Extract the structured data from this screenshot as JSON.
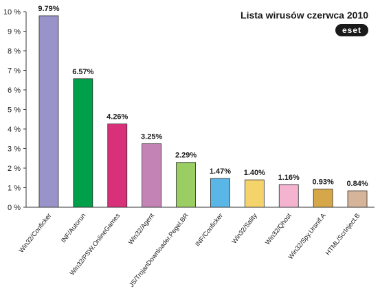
{
  "chart_data": {
    "type": "bar",
    "title": "Lista wirusów czerwca 2010",
    "logo": "eset",
    "categories": [
      "Win32/Conficker",
      "INF/Autorun",
      "Win32/PSW.OnlineGames",
      "Win32/Agent",
      "JS/TrojanDownloader.Pegel.BR",
      "INF/Conficker",
      "Win32/Sality",
      "Win32/Qhost",
      "Win32/Spy.Ursnif.A",
      "HTML/ScrInject.B"
    ],
    "values": [
      9.79,
      6.57,
      4.26,
      3.25,
      2.29,
      1.47,
      1.4,
      1.16,
      0.93,
      0.84
    ],
    "value_labels": [
      "9.79%",
      "6.57%",
      "4.26%",
      "3.25%",
      "2.29%",
      "1.47%",
      "1.40%",
      "1.16%",
      "0.93%",
      "0.84%"
    ],
    "colors": [
      "#9a93c9",
      "#00a04b",
      "#d9307a",
      "#c384b5",
      "#9acd62",
      "#5bb6e8",
      "#f5d36b",
      "#f4b4d0",
      "#d6a748",
      "#d5b49a"
    ],
    "ylim": [
      0,
      10
    ],
    "yticks": [
      0,
      1,
      2,
      3,
      4,
      5,
      6,
      7,
      8,
      9,
      10
    ],
    "ytick_labels": [
      "0 %",
      "1 %",
      "2 %",
      "3 %",
      "4 %",
      "5 %",
      "6 %",
      "7 %",
      "8 %",
      "9 %",
      "10 %"
    ],
    "grid": false,
    "xlabel": "",
    "ylabel": ""
  }
}
